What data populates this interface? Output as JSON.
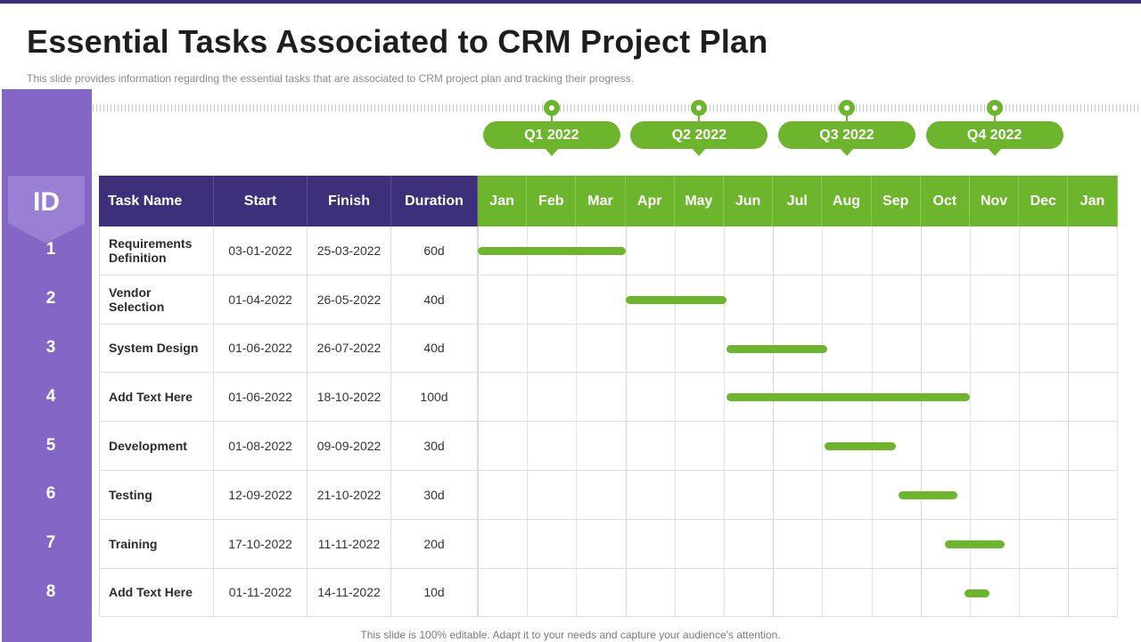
{
  "title": "Essential Tasks Associated to CRM Project Plan",
  "subtitle": "This slide provides  information  regarding  the essential tasks that are associated to CRM  project plan and tracking their progress.",
  "footer": "This slide is 100% editable. Adapt it to your needs and capture your audience's attention.",
  "colors": {
    "accent_purple": "#3d2f7a",
    "id_column": "#8466c6",
    "accent_green": "#6cb52d"
  },
  "id_header": "ID",
  "quarters": [
    "Q1 2022",
    "Q2 2022",
    "Q3 2022",
    "Q4 2022"
  ],
  "columns": {
    "task": "Task Name",
    "start": "Start",
    "finish": "Finish",
    "duration": "Duration"
  },
  "months": [
    "Jan",
    "Feb",
    "Mar",
    "Apr",
    "May",
    "Jun",
    "Jul",
    "Aug",
    "Sep",
    "Oct",
    "Nov",
    "Dec",
    "Jan"
  ],
  "tasks": [
    {
      "id": "1",
      "name": "Requirements\nDefinition",
      "start": "03-01-2022",
      "finish": "25-03-2022",
      "duration": "60d",
      "bar_start_month": 0.0,
      "bar_end_month": 3.0
    },
    {
      "id": "2",
      "name": "Vendor\nSelection",
      "start": "01-04-2022",
      "finish": "26-05-2022",
      "duration": "40d",
      "bar_start_month": 3.0,
      "bar_end_month": 5.05
    },
    {
      "id": "3",
      "name": "System Design",
      "start": "01-06-2022",
      "finish": "26-07-2022",
      "duration": "40d",
      "bar_start_month": 5.05,
      "bar_end_month": 7.1
    },
    {
      "id": "4",
      "name": "Add Text Here",
      "start": "01-06-2022",
      "finish": "18-10-2022",
      "duration": "100d",
      "bar_start_month": 5.05,
      "bar_end_month": 10.0
    },
    {
      "id": "5",
      "name": "Development",
      "start": "01-08-2022",
      "finish": "09-09-2022",
      "duration": "30d",
      "bar_start_month": 7.05,
      "bar_end_month": 8.5
    },
    {
      "id": "6",
      "name": "Testing",
      "start": "12-09-2022",
      "finish": "21-10-2022",
      "duration": "30d",
      "bar_start_month": 8.55,
      "bar_end_month": 9.75
    },
    {
      "id": "7",
      "name": "Training",
      "start": "17-10-2022",
      "finish": "11-11-2022",
      "duration": "20d",
      "bar_start_month": 9.5,
      "bar_end_month": 10.7
    },
    {
      "id": "8",
      "name": "Add Text Here",
      "start": "01-11-2022",
      "finish": "14-11-2022",
      "duration": "10d",
      "bar_start_month": 9.9,
      "bar_end_month": 10.4
    }
  ]
}
